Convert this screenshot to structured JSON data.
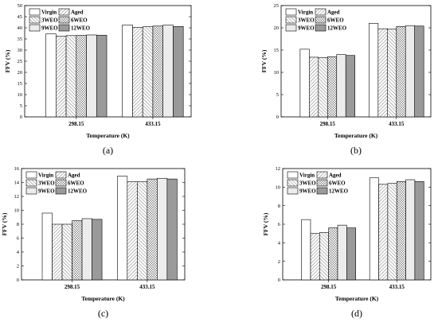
{
  "chart_data": [
    {
      "type": "bar",
      "label": "(a)",
      "categories": [
        "298.15",
        "433.15"
      ],
      "xlabel": "Temperature (K)",
      "ylabel": "FFV (%)",
      "ylim": [
        0,
        50
      ],
      "yticks": [
        0,
        5,
        10,
        15,
        20,
        25,
        30,
        35,
        40,
        45,
        50
      ],
      "series": [
        {
          "name": "Virgin",
          "values": [
            37.3,
            41.3
          ]
        },
        {
          "name": "Aged",
          "values": [
            36.2,
            40.2
          ]
        },
        {
          "name": "3WEO",
          "values": [
            36.5,
            40.5
          ]
        },
        {
          "name": "6WEO",
          "values": [
            36.6,
            40.8
          ]
        },
        {
          "name": "9WEO",
          "values": [
            36.8,
            41.2
          ]
        },
        {
          "name": "12WEO",
          "values": [
            36.7,
            40.6
          ]
        }
      ]
    },
    {
      "type": "bar",
      "label": "(b)",
      "categories": [
        "298.15",
        "433.15"
      ],
      "xlabel": "Temperature (K)",
      "ylabel": "FFV (%)",
      "ylim": [
        0,
        25
      ],
      "yticks": [
        0,
        5,
        10,
        15,
        20,
        25
      ],
      "series": [
        {
          "name": "Virgin",
          "values": [
            15.2,
            21.0
          ]
        },
        {
          "name": "Aged",
          "values": [
            13.4,
            19.8
          ]
        },
        {
          "name": "3WEO",
          "values": [
            13.3,
            19.7
          ]
        },
        {
          "name": "6WEO",
          "values": [
            13.5,
            20.3
          ]
        },
        {
          "name": "9WEO",
          "values": [
            14.0,
            20.5
          ]
        },
        {
          "name": "12WEO",
          "values": [
            13.8,
            20.4
          ]
        }
      ]
    },
    {
      "type": "bar",
      "label": "(c)",
      "categories": [
        "298.15",
        "433.15"
      ],
      "xlabel": "Temperature (K)",
      "ylabel": "FFV (%)",
      "ylim": [
        0,
        16
      ],
      "yticks": [
        0,
        2,
        4,
        6,
        8,
        10,
        12,
        14,
        16
      ],
      "series": [
        {
          "name": "Virgin",
          "values": [
            9.6,
            14.9
          ]
        },
        {
          "name": "Aged",
          "values": [
            8.0,
            14.1
          ]
        },
        {
          "name": "3WEO",
          "values": [
            8.0,
            14.1
          ]
        },
        {
          "name": "6WEO",
          "values": [
            8.5,
            14.5
          ]
        },
        {
          "name": "9WEO",
          "values": [
            8.8,
            14.6
          ]
        },
        {
          "name": "12WEO",
          "values": [
            8.7,
            14.5
          ]
        }
      ]
    },
    {
      "type": "bar",
      "label": "(d)",
      "categories": [
        "298.15",
        "433.15"
      ],
      "xlabel": "Temperature (K)",
      "ylabel": "FFV (%)",
      "ylim": [
        0,
        12
      ],
      "yticks": [
        0,
        2,
        4,
        6,
        8,
        10,
        12
      ],
      "series": [
        {
          "name": "Virgin",
          "values": [
            6.5,
            11.0
          ]
        },
        {
          "name": "Aged",
          "values": [
            5.0,
            10.3
          ]
        },
        {
          "name": "3WEO",
          "values": [
            5.1,
            10.4
          ]
        },
        {
          "name": "6WEO",
          "values": [
            5.6,
            10.6
          ]
        },
        {
          "name": "9WEO",
          "values": [
            5.9,
            10.8
          ]
        },
        {
          "name": "12WEO",
          "values": [
            5.6,
            10.6
          ]
        }
      ]
    }
  ]
}
